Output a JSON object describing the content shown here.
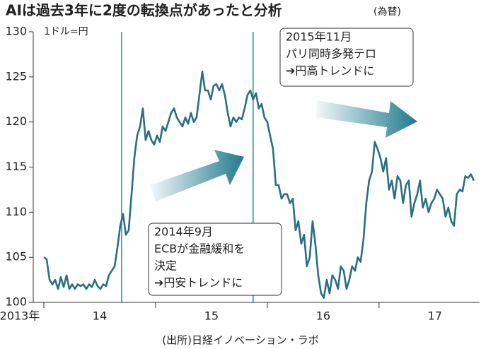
{
  "chart_data": {
    "type": "line",
    "title": "AIは過去3年に2度の転換点があったと分析",
    "subtitle": "(為替)",
    "y_label": "1ドル=円",
    "source": "(出所)日経イノベーション・ラボ",
    "xlim": [
      2014,
      2017.9
    ],
    "ylim": [
      100,
      130
    ],
    "yticks": [
      100,
      105,
      110,
      115,
      120,
      125,
      130
    ],
    "xticks": [
      2014,
      2015,
      2016,
      2017
    ],
    "xtick_labels": [
      {
        "value": 2013.5,
        "label": "2013年"
      },
      {
        "value": 2014.5,
        "label": "14"
      },
      {
        "value": 2015.5,
        "label": "15"
      },
      {
        "value": 2016.5,
        "label": "16"
      },
      {
        "value": 2017.5,
        "label": "17"
      }
    ],
    "x": [
      2014.0,
      2014.025,
      2014.051,
      2014.076,
      2014.101,
      2014.127,
      2014.152,
      2014.177,
      2014.203,
      2014.228,
      2014.253,
      2014.278,
      2014.304,
      2014.329,
      2014.354,
      2014.38,
      2014.405,
      2014.43,
      2014.456,
      2014.481,
      2014.506,
      2014.532,
      2014.557,
      2014.582,
      2014.608,
      2014.633,
      2014.658,
      2014.684,
      2014.709,
      2014.734,
      2014.759,
      2014.785,
      2014.81,
      2014.835,
      2014.861,
      2014.886,
      2014.911,
      2014.937,
      2014.962,
      2014.987,
      2015.013,
      2015.038,
      2015.063,
      2015.089,
      2015.114,
      2015.139,
      2015.165,
      2015.19,
      2015.215,
      2015.241,
      2015.266,
      2015.291,
      2015.316,
      2015.342,
      2015.367,
      2015.392,
      2015.418,
      2015.443,
      2015.468,
      2015.494,
      2015.519,
      2015.544,
      2015.57,
      2015.595,
      2015.62,
      2015.646,
      2015.671,
      2015.696,
      2015.722,
      2015.747,
      2015.772,
      2015.797,
      2015.823,
      2015.848,
      2015.873,
      2015.899,
      2015.924,
      2015.949,
      2015.975,
      2016.0,
      2016.025,
      2016.051,
      2016.076,
      2016.101,
      2016.127,
      2016.152,
      2016.177,
      2016.203,
      2016.228,
      2016.253,
      2016.278,
      2016.304,
      2016.329,
      2016.354,
      2016.38,
      2016.405,
      2016.43,
      2016.456,
      2016.481,
      2016.506,
      2016.532,
      2016.557,
      2016.582,
      2016.608,
      2016.633,
      2016.658,
      2016.684,
      2016.709,
      2016.734,
      2016.759,
      2016.785,
      2016.81,
      2016.835,
      2016.861,
      2016.886,
      2016.911,
      2016.937,
      2016.962,
      2016.987,
      2017.013,
      2017.038,
      2017.063,
      2017.089,
      2017.114,
      2017.139,
      2017.165,
      2017.19,
      2017.215,
      2017.241,
      2017.266,
      2017.291,
      2017.316,
      2017.342,
      2017.367,
      2017.392,
      2017.418,
      2017.443,
      2017.468,
      2017.494,
      2017.519,
      2017.544,
      2017.57,
      2017.595,
      2017.62,
      2017.646,
      2017.671,
      2017.696,
      2017.722,
      2017.747,
      2017.772,
      2017.797,
      2017.823,
      2017.848
    ],
    "series": [
      {
        "color": "#2b6f80",
        "values": [
          105,
          104.8,
          102.5,
          102,
          102.5,
          101.5,
          102.8,
          101.7,
          103,
          101.5,
          102,
          101.5,
          102,
          101.8,
          102,
          101.5,
          102,
          101.7,
          102.5,
          101.8,
          101.5,
          102,
          101.8,
          103,
          103.5,
          104,
          106,
          108.5,
          109.8,
          107.5,
          108,
          112,
          116,
          118.5,
          119.5,
          121.5,
          118,
          119,
          118,
          117.5,
          118.5,
          117.8,
          119.5,
          119,
          120,
          121,
          121.5,
          120.5,
          120,
          119.5,
          120.5,
          119.8,
          121,
          120,
          120.5,
          123,
          125.6,
          123.5,
          123.5,
          122.5,
          124,
          124.2,
          123.5,
          124.2,
          123,
          121,
          119.5,
          120.5,
          120,
          120.5,
          120.3,
          121.5,
          123,
          123.5,
          122.5,
          123.2,
          121.5,
          122,
          120.5,
          120,
          118.5,
          117,
          113,
          113,
          111.5,
          112,
          112,
          111,
          111.5,
          108,
          109,
          106.5,
          107.5,
          104,
          105,
          109,
          106.5,
          103,
          101,
          100.5,
          102.5,
          101,
          103,
          102.5,
          101.5,
          104,
          103.5,
          101.5,
          102.5,
          104,
          103.5,
          105,
          104.5,
          107,
          111,
          113.5,
          114.5,
          117.8,
          117,
          116,
          114.5,
          116,
          112.5,
          113.5,
          111.5,
          114,
          113.5,
          111,
          113,
          113.5,
          109.5,
          111,
          112,
          113.5,
          110.5,
          111.5,
          110,
          111,
          111.5,
          112.5,
          112,
          111.5,
          109.5,
          110.5,
          109,
          108.5,
          112,
          112.5,
          112.3,
          114,
          113.8,
          114.2,
          113.5
        ]
      }
    ],
    "annotations": [
      {
        "x": 2014.696,
        "lines": [
          "2014年9月",
          "ECBが金融緩和を",
          "決定",
          "➔円安トレンドに"
        ]
      },
      {
        "x": 2015.873,
        "lines": [
          "2015年11月",
          "パリ同時多発テロ",
          "➔円高トレンドに"
        ]
      }
    ]
  }
}
